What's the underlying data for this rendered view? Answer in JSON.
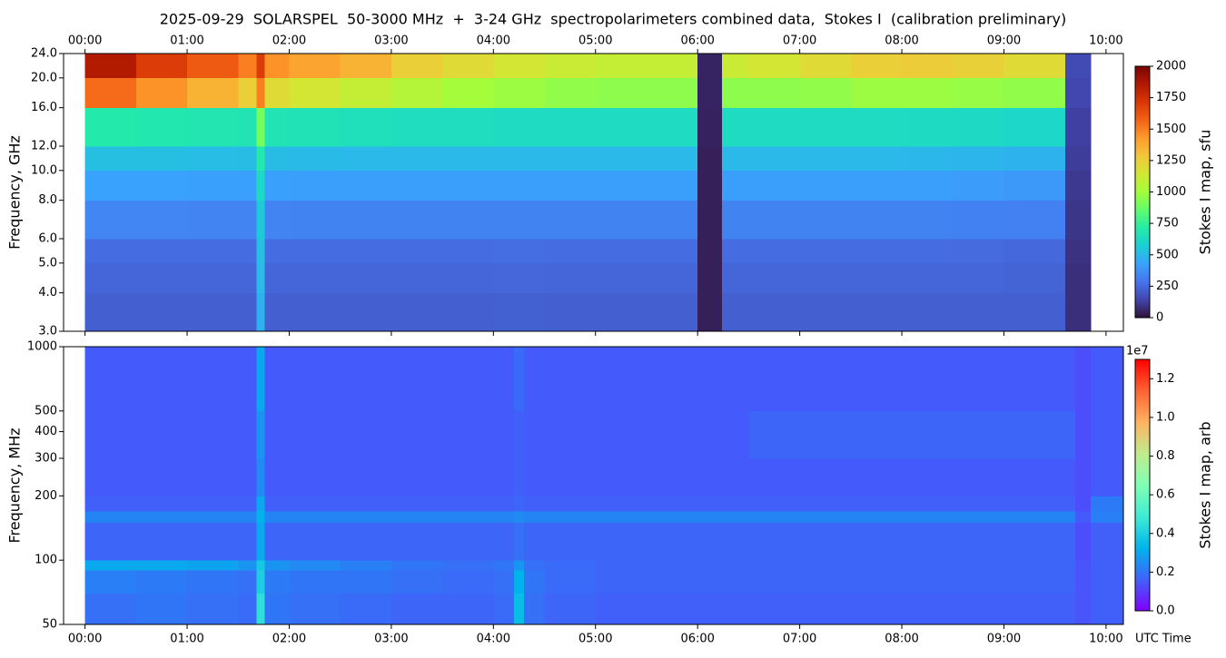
{
  "chart_data": [
    {
      "type": "heatmap",
      "title": "2025-09-29  SOLARSPEL  50-3000 MHz  +  3-24 GHz  spectropolarimeters combined data,  Stokes I  (calibration preliminary)",
      "ylabel": "Frequency, GHz",
      "colorbar_label": "Stokes I map, sfu",
      "xtick_side": "top",
      "ylog": true,
      "xlim": [
        -0.21,
        10.17
      ],
      "ylim": [
        3,
        24
      ],
      "xticks": [
        {
          "value": 0,
          "label": "00:00"
        },
        {
          "value": 1,
          "label": "01:00"
        },
        {
          "value": 2,
          "label": "02:00"
        },
        {
          "value": 3,
          "label": "03:00"
        },
        {
          "value": 4,
          "label": "04:00"
        },
        {
          "value": 5,
          "label": "05:00"
        },
        {
          "value": 6,
          "label": "06:00"
        },
        {
          "value": 7,
          "label": "07:00"
        },
        {
          "value": 8,
          "label": "08:00"
        },
        {
          "value": 9,
          "label": "09:00"
        },
        {
          "value": 10,
          "label": "10:00"
        }
      ],
      "yticks": [
        {
          "value": 3,
          "label": "3.0"
        },
        {
          "value": 4,
          "label": "4.0"
        },
        {
          "value": 5,
          "label": "5.0"
        },
        {
          "value": 6,
          "label": "6.0"
        },
        {
          "value": 8,
          "label": "8.0"
        },
        {
          "value": 10,
          "label": "10.0"
        },
        {
          "value": 12,
          "label": "12.0"
        },
        {
          "value": 16,
          "label": "16.0"
        },
        {
          "value": 20,
          "label": "20.0"
        },
        {
          "value": 24,
          "label": "24.0"
        }
      ],
      "clim": [
        0,
        2000
      ],
      "cticks": [
        0,
        250,
        500,
        750,
        1000,
        1250,
        1500,
        1750,
        2000
      ],
      "colormap": [
        "#30123b",
        "#4145ab",
        "#4675ed",
        "#39a2fc",
        "#1bcfd4",
        "#24eca6",
        "#61fc6c",
        "#a4fc3b",
        "#d1e834",
        "#f3c63a",
        "#fe9b2d",
        "#f36315",
        "#d93806",
        "#b11901",
        "#7a0403"
      ],
      "x_edges": [
        0,
        0.5,
        1,
        1.5,
        1.68,
        1.76,
        2,
        2.5,
        3,
        3.5,
        4,
        4.5,
        5,
        5.5,
        6,
        6.24,
        6.5,
        7,
        7.5,
        8,
        8.5,
        9,
        9.6,
        9.85
      ],
      "y_edges": [
        3,
        4,
        5,
        6,
        8,
        10,
        12,
        16,
        20,
        24
      ],
      "values": [
        [
          220,
          220,
          220,
          220,
          480,
          220,
          220,
          220,
          220,
          220,
          225,
          220,
          220,
          220,
          40,
          220,
          220,
          220,
          220,
          220,
          220,
          220,
          80
        ],
        [
          240,
          240,
          240,
          240,
          500,
          240,
          240,
          240,
          240,
          240,
          245,
          240,
          240,
          240,
          40,
          240,
          240,
          240,
          240,
          240,
          240,
          235,
          80
        ],
        [
          260,
          260,
          260,
          260,
          520,
          260,
          260,
          260,
          260,
          260,
          265,
          260,
          260,
          260,
          40,
          260,
          260,
          260,
          260,
          260,
          255,
          250,
          90
        ],
        [
          340,
          340,
          335,
          335,
          560,
          335,
          330,
          330,
          330,
          330,
          330,
          330,
          330,
          330,
          40,
          330,
          330,
          330,
          330,
          330,
          325,
          320,
          100
        ],
        [
          430,
          430,
          425,
          425,
          620,
          425,
          420,
          420,
          420,
          420,
          420,
          420,
          420,
          420,
          40,
          420,
          420,
          420,
          420,
          415,
          410,
          400,
          110
        ],
        [
          520,
          520,
          515,
          510,
          700,
          510,
          505,
          500,
          500,
          500,
          500,
          500,
          500,
          500,
          40,
          500,
          500,
          500,
          500,
          495,
          490,
          480,
          120
        ],
        [
          700,
          690,
          680,
          670,
          900,
          670,
          660,
          650,
          640,
          640,
          630,
          630,
          630,
          630,
          45,
          630,
          630,
          630,
          630,
          625,
          620,
          610,
          130
        ],
        [
          1550,
          1450,
          1350,
          1250,
          1500,
          1200,
          1150,
          1100,
          1050,
          1000,
          980,
          960,
          950,
          950,
          50,
          950,
          950,
          960,
          980,
          980,
          970,
          960,
          150
        ],
        [
          1850,
          1700,
          1600,
          1500,
          1700,
          1450,
          1400,
          1350,
          1250,
          1200,
          1150,
          1120,
          1100,
          1100,
          50,
          1120,
          1150,
          1200,
          1250,
          1260,
          1240,
          1200,
          160
        ]
      ]
    },
    {
      "type": "heatmap",
      "ylabel": "Frequency, MHz",
      "xlabel": "UTC Time",
      "colorbar_label": "Stokes I map, arb",
      "colorbar_offset": "1e7",
      "xtick_side": "bottom",
      "ylog": true,
      "xlim": [
        -0.21,
        10.17
      ],
      "ylim": [
        50,
        1000
      ],
      "xticks": [
        {
          "value": 0,
          "label": "00:00"
        },
        {
          "value": 1,
          "label": "01:00"
        },
        {
          "value": 2,
          "label": "02:00"
        },
        {
          "value": 3,
          "label": "03:00"
        },
        {
          "value": 4,
          "label": "04:00"
        },
        {
          "value": 5,
          "label": "05:00"
        },
        {
          "value": 6,
          "label": "06:00"
        },
        {
          "value": 7,
          "label": "07:00"
        },
        {
          "value": 8,
          "label": "08:00"
        },
        {
          "value": 9,
          "label": "09:00"
        },
        {
          "value": 10,
          "label": "10:00"
        }
      ],
      "yticks": [
        50,
        100,
        200,
        300,
        400,
        500,
        1000
      ],
      "clim": [
        0,
        13000000
      ],
      "cticks": [
        {
          "value": 0,
          "label": "0.0"
        },
        {
          "value": 2000000,
          "label": "0.2"
        },
        {
          "value": 4000000,
          "label": "0.4"
        },
        {
          "value": 6000000,
          "label": "0.6"
        },
        {
          "value": 8000000,
          "label": "0.8"
        },
        {
          "value": 10000000,
          "label": "1.0"
        },
        {
          "value": 12000000,
          "label": "1.2"
        }
      ],
      "colormap": [
        "#8000ff",
        "#4062fa",
        "#00b5eb",
        "#40ecd4",
        "#80ffb4",
        "#c0eb8d",
        "#ffb360",
        "#ff6232",
        "#ff0000"
      ],
      "x_edges": [
        0,
        0.5,
        1,
        1.5,
        1.68,
        1.76,
        2,
        2.5,
        3,
        3.5,
        4,
        4.2,
        4.3,
        4.5,
        5,
        5.5,
        6,
        6.5,
        7,
        7.5,
        8,
        8.5,
        9,
        9.7,
        9.85,
        10.17
      ],
      "y_edges": [
        50,
        70,
        90,
        100,
        150,
        170,
        200,
        300,
        500,
        1000
      ],
      "values": [
        [
          1900000,
          2000000,
          1900000,
          1800000,
          4500000,
          2000000,
          1900000,
          1800000,
          1700000,
          1700000,
          1800000,
          3500000,
          1900000,
          1700000,
          1600000,
          1600000,
          1600000,
          1600000,
          1600000,
          1600000,
          1600000,
          1600000,
          1600000,
          1400000,
          1600000
        ],
        [
          2200000,
          2100000,
          2000000,
          1900000,
          4000000,
          2100000,
          2000000,
          2000000,
          1900000,
          1800000,
          1900000,
          3200000,
          2000000,
          1800000,
          1700000,
          1700000,
          1700000,
          1700000,
          1700000,
          1700000,
          1700000,
          1700000,
          1700000,
          1400000,
          1600000
        ],
        [
          3000000,
          3000000,
          2900000,
          2600000,
          3800000,
          2600000,
          2400000,
          2200000,
          2000000,
          1900000,
          2000000,
          2600000,
          1900000,
          1800000,
          1700000,
          1700000,
          1700000,
          1700000,
          1700000,
          1700000,
          1700000,
          1700000,
          1700000,
          1400000,
          1600000
        ],
        [
          1700000,
          1700000,
          1700000,
          1700000,
          3000000,
          1700000,
          1700000,
          1700000,
          1700000,
          1700000,
          1700000,
          1900000,
          1700000,
          1700000,
          1700000,
          1700000,
          1700000,
          1700000,
          1700000,
          1700000,
          1700000,
          1700000,
          1700000,
          1300000,
          1600000
        ],
        [
          2300000,
          2300000,
          2300000,
          2300000,
          3200000,
          2300000,
          2300000,
          2300000,
          2300000,
          2300000,
          2300000,
          2400000,
          2300000,
          2300000,
          2300000,
          2300000,
          2300000,
          2300000,
          2300000,
          2300000,
          2300000,
          2300000,
          2300000,
          1500000,
          2200000
        ],
        [
          1600000,
          1600000,
          1600000,
          1600000,
          3000000,
          1600000,
          1600000,
          1600000,
          1600000,
          1600000,
          1600000,
          1700000,
          1600000,
          1600000,
          1600000,
          1600000,
          1600000,
          1600000,
          1600000,
          1600000,
          1600000,
          1600000,
          1600000,
          1300000,
          2100000
        ],
        [
          1500000,
          1500000,
          1500000,
          1500000,
          2400000,
          1500000,
          1500000,
          1500000,
          1500000,
          1500000,
          1500000,
          1600000,
          1500000,
          1500000,
          1500000,
          1500000,
          1500000,
          1500000,
          1500000,
          1500000,
          1500000,
          1500000,
          1500000,
          1300000,
          1500000
        ],
        [
          1500000,
          1500000,
          1500000,
          1500000,
          2600000,
          1500000,
          1500000,
          1500000,
          1500000,
          1500000,
          1500000,
          1600000,
          1500000,
          1500000,
          1500000,
          1500000,
          1500000,
          1700000,
          1700000,
          1700000,
          1700000,
          1700000,
          1700000,
          1300000,
          1500000
        ],
        [
          1500000,
          1500000,
          1500000,
          1500000,
          3000000,
          1500000,
          1500000,
          1500000,
          1500000,
          1500000,
          1500000,
          1800000,
          1500000,
          1500000,
          1500000,
          1500000,
          1500000,
          1500000,
          1500000,
          1500000,
          1500000,
          1500000,
          1500000,
          1300000,
          1500000
        ]
      ]
    }
  ]
}
